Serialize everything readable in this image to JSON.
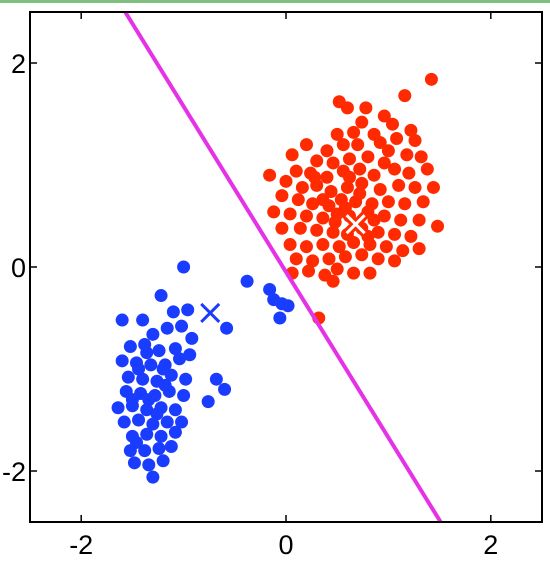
{
  "chart_data": {
    "type": "scatter",
    "title": "",
    "xlabel": "",
    "ylabel": "",
    "xlim": [
      -2.5,
      2.5
    ],
    "ylim": [
      -2.5,
      2.5
    ],
    "xticks": [
      -2,
      0,
      2
    ],
    "yticks": [
      -2,
      0,
      2
    ],
    "x_tick_labels": [
      "-2",
      "0",
      "2"
    ],
    "y_tick_labels": [
      "-2",
      "0",
      "2"
    ],
    "grid": false,
    "legend": "none",
    "colors": {
      "frame_band": "#7fbf7f",
      "cluster_red": "#ff2a00",
      "cluster_blue": "#1a3cff",
      "decision_line": "#e632e6",
      "red_centroid": "#ffffff",
      "blue_centroid": "#1a3cff"
    },
    "decision_boundary": {
      "points": [
        [
          -1.57,
          2.5
        ],
        [
          1.51,
          -2.5
        ]
      ]
    },
    "centroids": [
      {
        "cluster": "red",
        "marker": "x",
        "x": 0.68,
        "y": 0.42
      },
      {
        "cluster": "blue",
        "marker": "x",
        "x": -0.74,
        "y": -0.45
      }
    ],
    "series": [
      {
        "cluster": "red",
        "points": [
          [
            0.52,
            1.62
          ],
          [
            0.6,
            1.56
          ],
          [
            0.78,
            1.56
          ],
          [
            1.16,
            1.68
          ],
          [
            1.42,
            1.84
          ],
          [
            0.74,
            1.42
          ],
          [
            0.96,
            1.48
          ],
          [
            1.04,
            1.4
          ],
          [
            1.22,
            1.34
          ],
          [
            0.5,
            1.3
          ],
          [
            0.66,
            1.32
          ],
          [
            0.86,
            1.3
          ],
          [
            0.2,
            1.2
          ],
          [
            0.4,
            1.14
          ],
          [
            0.56,
            1.2
          ],
          [
            0.7,
            1.2
          ],
          [
            0.92,
            1.22
          ],
          [
            1.08,
            1.26
          ],
          [
            1.26,
            1.24
          ],
          [
            0.06,
            1.1
          ],
          [
            0.3,
            1.04
          ],
          [
            0.46,
            1.02
          ],
          [
            0.62,
            1.06
          ],
          [
            0.8,
            1.08
          ],
          [
            1.0,
            1.14
          ],
          [
            1.18,
            1.1
          ],
          [
            1.32,
            1.08
          ],
          [
            0.1,
            0.94
          ],
          [
            0.24,
            0.92
          ],
          [
            0.4,
            0.88
          ],
          [
            0.56,
            0.94
          ],
          [
            0.72,
            0.96
          ],
          [
            0.86,
            0.9
          ],
          [
            1.06,
            0.96
          ],
          [
            1.2,
            0.92
          ],
          [
            1.38,
            0.96
          ],
          [
            -0.16,
            0.9
          ],
          [
            0.0,
            0.84
          ],
          [
            0.16,
            0.78
          ],
          [
            0.3,
            0.8
          ],
          [
            0.44,
            0.74
          ],
          [
            0.6,
            0.78
          ],
          [
            0.74,
            0.82
          ],
          [
            0.92,
            0.76
          ],
          [
            1.1,
            0.8
          ],
          [
            1.26,
            0.78
          ],
          [
            1.44,
            0.78
          ],
          [
            -0.04,
            0.7
          ],
          [
            0.12,
            0.66
          ],
          [
            0.26,
            0.62
          ],
          [
            0.42,
            0.6
          ],
          [
            0.54,
            0.66
          ],
          [
            0.68,
            0.64
          ],
          [
            0.84,
            0.62
          ],
          [
            1.0,
            0.64
          ],
          [
            1.16,
            0.62
          ],
          [
            1.34,
            0.64
          ],
          [
            -0.12,
            0.54
          ],
          [
            0.04,
            0.52
          ],
          [
            0.2,
            0.5
          ],
          [
            0.36,
            0.48
          ],
          [
            0.5,
            0.52
          ],
          [
            0.62,
            0.5
          ],
          [
            0.8,
            0.54
          ],
          [
            0.96,
            0.5
          ],
          [
            1.12,
            0.46
          ],
          [
            1.3,
            0.46
          ],
          [
            1.48,
            0.4
          ],
          [
            -0.04,
            0.38
          ],
          [
            0.14,
            0.38
          ],
          [
            0.3,
            0.36
          ],
          [
            0.46,
            0.34
          ],
          [
            0.6,
            0.32
          ],
          [
            0.74,
            0.38
          ],
          [
            0.9,
            0.34
          ],
          [
            1.06,
            0.32
          ],
          [
            1.22,
            0.3
          ],
          [
            0.04,
            0.22
          ],
          [
            0.2,
            0.2
          ],
          [
            0.36,
            0.22
          ],
          [
            0.52,
            0.2
          ],
          [
            0.66,
            0.24
          ],
          [
            0.82,
            0.22
          ],
          [
            0.98,
            0.2
          ],
          [
            1.14,
            0.16
          ],
          [
            1.3,
            0.18
          ],
          [
            0.1,
            0.08
          ],
          [
            0.26,
            0.06
          ],
          [
            0.42,
            0.08
          ],
          [
            0.58,
            0.1
          ],
          [
            0.74,
            0.12
          ],
          [
            0.9,
            0.08
          ],
          [
            1.06,
            0.06
          ],
          [
            0.06,
            -0.06
          ],
          [
            0.22,
            -0.04
          ],
          [
            0.38,
            -0.08
          ],
          [
            0.5,
            -0.02
          ],
          [
            0.66,
            -0.06
          ],
          [
            0.82,
            -0.06
          ],
          [
            0.46,
            -0.14
          ],
          [
            0.32,
            -0.5
          ],
          [
            0.58,
            0.58
          ],
          [
            0.72,
            0.72
          ],
          [
            0.86,
            0.46
          ],
          [
            0.36,
            0.66
          ],
          [
            0.28,
            0.88
          ],
          [
            0.48,
            0.44
          ],
          [
            0.96,
            1.02
          ],
          [
            0.62,
            0.88
          ],
          [
            0.8,
            0.3
          ]
        ]
      },
      {
        "cluster": "blue",
        "points": [
          [
            -1.0,
            0.0
          ],
          [
            -0.38,
            -0.14
          ],
          [
            -0.16,
            -0.22
          ],
          [
            -0.12,
            -0.32
          ],
          [
            -0.04,
            -0.36
          ],
          [
            0.02,
            -0.38
          ],
          [
            -0.06,
            -0.5
          ],
          [
            -1.22,
            -0.28
          ],
          [
            -1.1,
            -0.44
          ],
          [
            -0.96,
            -0.42
          ],
          [
            -0.58,
            -0.6
          ],
          [
            -1.6,
            -0.52
          ],
          [
            -1.4,
            -0.52
          ],
          [
            -1.3,
            -0.66
          ],
          [
            -1.16,
            -0.6
          ],
          [
            -1.02,
            -0.58
          ],
          [
            -0.92,
            -0.7
          ],
          [
            -1.52,
            -0.78
          ],
          [
            -1.38,
            -0.76
          ],
          [
            -1.24,
            -0.82
          ],
          [
            -1.08,
            -0.8
          ],
          [
            -0.94,
            -0.86
          ],
          [
            -1.6,
            -0.92
          ],
          [
            -1.46,
            -0.94
          ],
          [
            -1.32,
            -0.96
          ],
          [
            -1.18,
            -0.96
          ],
          [
            -1.04,
            -0.9
          ],
          [
            -1.54,
            -1.08
          ],
          [
            -1.4,
            -1.1
          ],
          [
            -1.26,
            -1.12
          ],
          [
            -1.12,
            -1.06
          ],
          [
            -0.98,
            -1.1
          ],
          [
            -0.68,
            -1.1
          ],
          [
            -0.6,
            -1.2
          ],
          [
            -1.56,
            -1.22
          ],
          [
            -1.42,
            -1.24
          ],
          [
            -1.28,
            -1.26
          ],
          [
            -1.14,
            -1.22
          ],
          [
            -1.0,
            -1.26
          ],
          [
            -1.64,
            -1.38
          ],
          [
            -1.5,
            -1.36
          ],
          [
            -1.36,
            -1.4
          ],
          [
            -1.22,
            -1.38
          ],
          [
            -1.08,
            -1.4
          ],
          [
            -0.76,
            -1.32
          ],
          [
            -1.58,
            -1.52
          ],
          [
            -1.44,
            -1.5
          ],
          [
            -1.3,
            -1.54
          ],
          [
            -1.16,
            -1.52
          ],
          [
            -1.02,
            -1.52
          ],
          [
            -1.5,
            -1.66
          ],
          [
            -1.36,
            -1.64
          ],
          [
            -1.22,
            -1.66
          ],
          [
            -1.08,
            -1.62
          ],
          [
            -1.52,
            -1.8
          ],
          [
            -1.38,
            -1.8
          ],
          [
            -1.24,
            -1.78
          ],
          [
            -1.12,
            -1.76
          ],
          [
            -1.48,
            -1.92
          ],
          [
            -1.34,
            -1.94
          ],
          [
            -1.2,
            -1.9
          ],
          [
            -1.3,
            -2.06
          ],
          [
            -1.44,
            -1.0
          ],
          [
            -1.2,
            -1.0
          ],
          [
            -1.34,
            -1.3
          ],
          [
            -1.46,
            -1.72
          ],
          [
            -1.26,
            -1.44
          ],
          [
            -1.18,
            -1.16
          ],
          [
            -1.36,
            -0.84
          ],
          [
            -1.5,
            -1.3
          ]
        ]
      }
    ]
  }
}
